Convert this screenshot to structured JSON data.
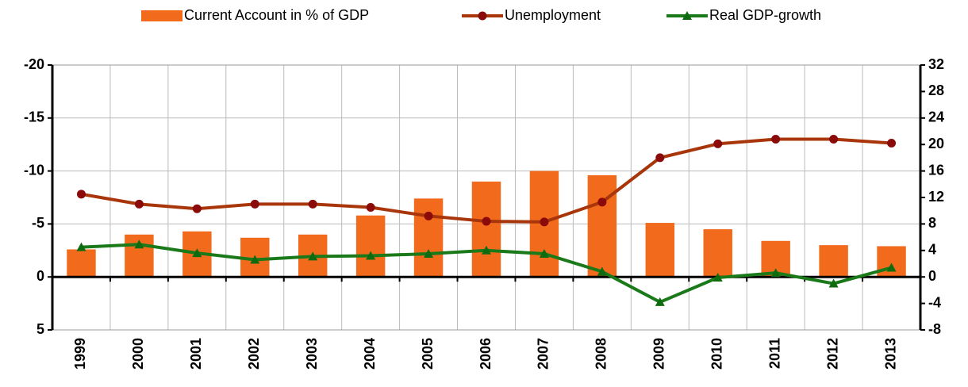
{
  "chart_data": {
    "type": "bar_line",
    "categories": [
      "1999",
      "2000",
      "2001",
      "2002",
      "2003",
      "2004",
      "2005",
      "2006",
      "2007",
      "2008",
      "2009",
      "2010",
      "2011",
      "2012",
      "2013"
    ],
    "series": [
      {
        "name": "Current Account in % of GDP",
        "type": "bar",
        "color": "#f26b1d",
        "axis": "y",
        "values": [
          -2.6,
          -4.0,
          -4.3,
          -3.7,
          -4.0,
          -5.8,
          -7.4,
          -9.0,
          -10.0,
          -9.6,
          -5.1,
          -4.5,
          -3.4,
          -3.0,
          -2.9
        ]
      },
      {
        "name": "Unemployment",
        "type": "line",
        "marker": "circle",
        "color": "#a8360a",
        "marker_color": "#8b0a0a",
        "axis": "y2",
        "values": [
          12.5,
          11.0,
          10.3,
          11.0,
          11.0,
          10.5,
          9.2,
          8.4,
          8.3,
          11.3,
          18.0,
          20.1,
          20.8,
          20.8,
          20.2
        ]
      },
      {
        "name": "Real GDP-growth",
        "type": "line",
        "marker": "triangle",
        "color": "#1a7a1a",
        "marker_color": "#0f6b0f",
        "axis": "y2",
        "values": [
          4.5,
          4.9,
          3.6,
          2.6,
          3.1,
          3.2,
          3.5,
          4.0,
          3.5,
          0.8,
          -3.8,
          -0.1,
          0.6,
          -1.0,
          1.4
        ]
      }
    ],
    "ylim": [
      -20,
      5
    ],
    "y_inverted": true,
    "yticks": [
      -20,
      -15,
      -10,
      -5,
      0,
      5
    ],
    "y2lim": [
      -8,
      32
    ],
    "y2ticks": [
      -8,
      -4,
      0,
      4,
      8,
      12,
      16,
      20,
      24,
      28,
      32
    ],
    "grid": true,
    "legend": "top"
  }
}
